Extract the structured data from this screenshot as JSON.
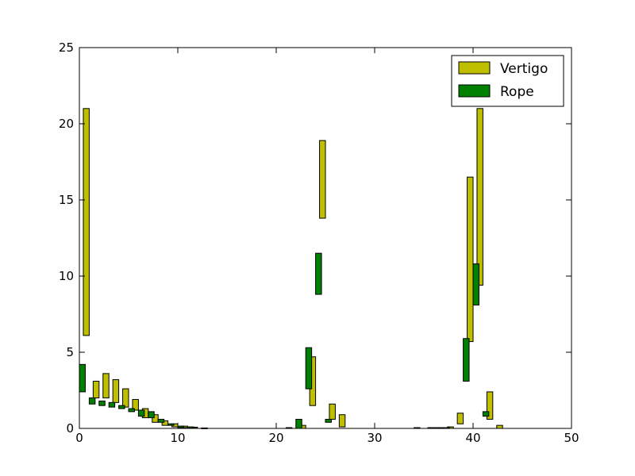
{
  "chart_data": {
    "type": "bar",
    "subtype": "floating-bar",
    "xlim": [
      0,
      50
    ],
    "ylim": [
      0,
      25
    ],
    "xticks": [
      "0",
      "10",
      "20",
      "30",
      "40",
      "50"
    ],
    "yticks": [
      "0",
      "5",
      "10",
      "15",
      "20",
      "25"
    ],
    "grid": false,
    "legend": {
      "placement": "top-right"
    },
    "series": [
      {
        "name": "Vertigo",
        "color": "#bfbf00",
        "bars": [
          {
            "x": 0,
            "bottom": 6.1,
            "top": 21.0
          },
          {
            "x": 1,
            "bottom": 2.0,
            "top": 3.1
          },
          {
            "x": 2,
            "bottom": 2.0,
            "top": 3.6
          },
          {
            "x": 3,
            "bottom": 1.7,
            "top": 3.2
          },
          {
            "x": 4,
            "bottom": 1.4,
            "top": 2.6
          },
          {
            "x": 5,
            "bottom": 1.2,
            "top": 1.9
          },
          {
            "x": 6,
            "bottom": 0.7,
            "top": 1.3
          },
          {
            "x": 7,
            "bottom": 0.4,
            "top": 0.9
          },
          {
            "x": 8,
            "bottom": 0.2,
            "top": 0.5
          },
          {
            "x": 9,
            "bottom": 0.1,
            "top": 0.3
          },
          {
            "x": 10,
            "bottom": 0.05,
            "top": 0.15
          },
          {
            "x": 11,
            "bottom": 0.02,
            "top": 0.08
          },
          {
            "x": 12,
            "bottom": 0.0,
            "top": 0.03
          },
          {
            "x": 22,
            "bottom": 0.0,
            "top": 0.2
          },
          {
            "x": 23,
            "bottom": 1.5,
            "top": 4.7
          },
          {
            "x": 24,
            "bottom": 13.8,
            "top": 18.9
          },
          {
            "x": 25,
            "bottom": 0.6,
            "top": 1.6
          },
          {
            "x": 26,
            "bottom": 0.1,
            "top": 0.9
          },
          {
            "x": 35,
            "bottom": 0.0,
            "top": 0.05
          },
          {
            "x": 36,
            "bottom": 0.0,
            "top": 0.05
          },
          {
            "x": 37,
            "bottom": 0.0,
            "top": 0.1
          },
          {
            "x": 38,
            "bottom": 0.3,
            "top": 1.0
          },
          {
            "x": 39,
            "bottom": 5.7,
            "top": 16.5
          },
          {
            "x": 40,
            "bottom": 9.4,
            "top": 21.0
          },
          {
            "x": 41,
            "bottom": 0.6,
            "top": 2.4
          },
          {
            "x": 42,
            "bottom": 0.0,
            "top": 0.2
          }
        ]
      },
      {
        "name": "Rope",
        "color": "#008000",
        "bars": [
          {
            "x": 0,
            "bottom": 2.4,
            "top": 4.2
          },
          {
            "x": 1,
            "bottom": 1.6,
            "top": 2.0
          },
          {
            "x": 2,
            "bottom": 1.5,
            "top": 1.8
          },
          {
            "x": 3,
            "bottom": 1.4,
            "top": 1.7
          },
          {
            "x": 4,
            "bottom": 1.3,
            "top": 1.5
          },
          {
            "x": 5,
            "bottom": 1.1,
            "top": 1.3
          },
          {
            "x": 6,
            "bottom": 0.8,
            "top": 1.2
          },
          {
            "x": 7,
            "bottom": 0.7,
            "top": 1.1
          },
          {
            "x": 8,
            "bottom": 0.4,
            "top": 0.6
          },
          {
            "x": 9,
            "bottom": 0.2,
            "top": 0.3
          },
          {
            "x": 10,
            "bottom": 0.05,
            "top": 0.15
          },
          {
            "x": 11,
            "bottom": 0.02,
            "top": 0.1
          },
          {
            "x": 21,
            "bottom": 0.0,
            "top": 0.05
          },
          {
            "x": 22,
            "bottom": 0.0,
            "top": 0.6
          },
          {
            "x": 23,
            "bottom": 2.6,
            "top": 5.3
          },
          {
            "x": 24,
            "bottom": 8.8,
            "top": 11.5
          },
          {
            "x": 25,
            "bottom": 0.4,
            "top": 0.6
          },
          {
            "x": 34,
            "bottom": 0.0,
            "top": 0.05
          },
          {
            "x": 36,
            "bottom": 0.0,
            "top": 0.05
          },
          {
            "x": 37,
            "bottom": 0.0,
            "top": 0.05
          },
          {
            "x": 39,
            "bottom": 3.1,
            "top": 5.9
          },
          {
            "x": 40,
            "bottom": 8.1,
            "top": 10.8
          },
          {
            "x": 41,
            "bottom": 0.8,
            "top": 1.1
          }
        ]
      }
    ]
  }
}
